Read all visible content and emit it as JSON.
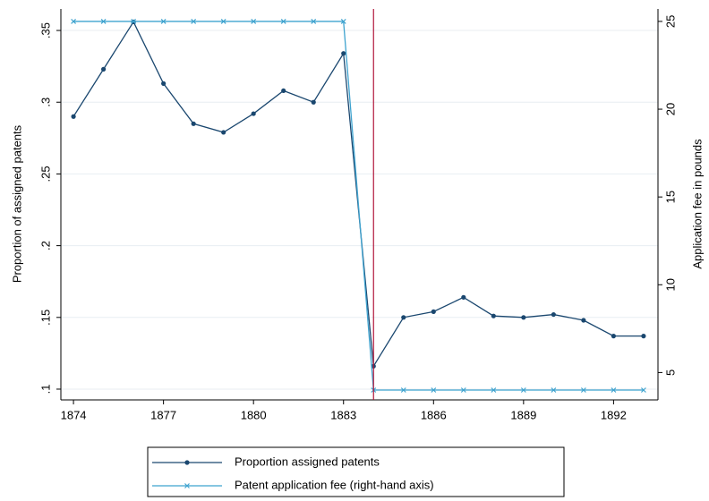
{
  "chart_data": {
    "type": "line",
    "x": [
      1874,
      1875,
      1876,
      1877,
      1878,
      1879,
      1880,
      1881,
      1882,
      1883,
      1884,
      1885,
      1886,
      1887,
      1888,
      1889,
      1890,
      1891,
      1892,
      1893
    ],
    "series": [
      {
        "name": "Proportion assigned patents",
        "color": "#1a476f",
        "marker": "circle",
        "values": [
          0.29,
          0.323,
          0.356,
          0.313,
          0.285,
          0.279,
          0.292,
          0.308,
          0.3,
          0.334,
          0.116,
          0.15,
          0.154,
          0.164,
          0.151,
          0.15,
          0.152,
          0.148,
          0.137,
          0.137
        ]
      },
      {
        "name": "Patent application fee (right-hand axis)",
        "color": "#3fa3cf",
        "marker": "x",
        "axis": "y2",
        "values": [
          25,
          25,
          25,
          25,
          25,
          25,
          25,
          25,
          25,
          25,
          4,
          4,
          4,
          4,
          4,
          4,
          4,
          4,
          4,
          4
        ]
      }
    ],
    "y_label": "Proportion of assigned patents",
    "y2_label": "Application fee in pounds",
    "xlim": [
      1873.58,
      1893.48
    ],
    "xticks": [
      1874,
      1877,
      1880,
      1883,
      1886,
      1889,
      1892
    ],
    "ylim": [
      0.0925,
      0.365
    ],
    "yticks": [
      {
        "value": 0.1,
        "label": ".1"
      },
      {
        "value": 0.15,
        "label": ".15"
      },
      {
        "value": 0.2,
        "label": ".2"
      },
      {
        "value": 0.25,
        "label": ".25"
      },
      {
        "value": 0.3,
        "label": ".3"
      },
      {
        "value": 0.35,
        "label": ".35"
      }
    ],
    "y2lim": [
      3.44,
      25.71
    ],
    "y2ticks": [
      5,
      10,
      15,
      20,
      25
    ],
    "reference_line": {
      "x": 1884,
      "color": "#b0163a"
    },
    "grid": true,
    "legend": "bottom"
  }
}
